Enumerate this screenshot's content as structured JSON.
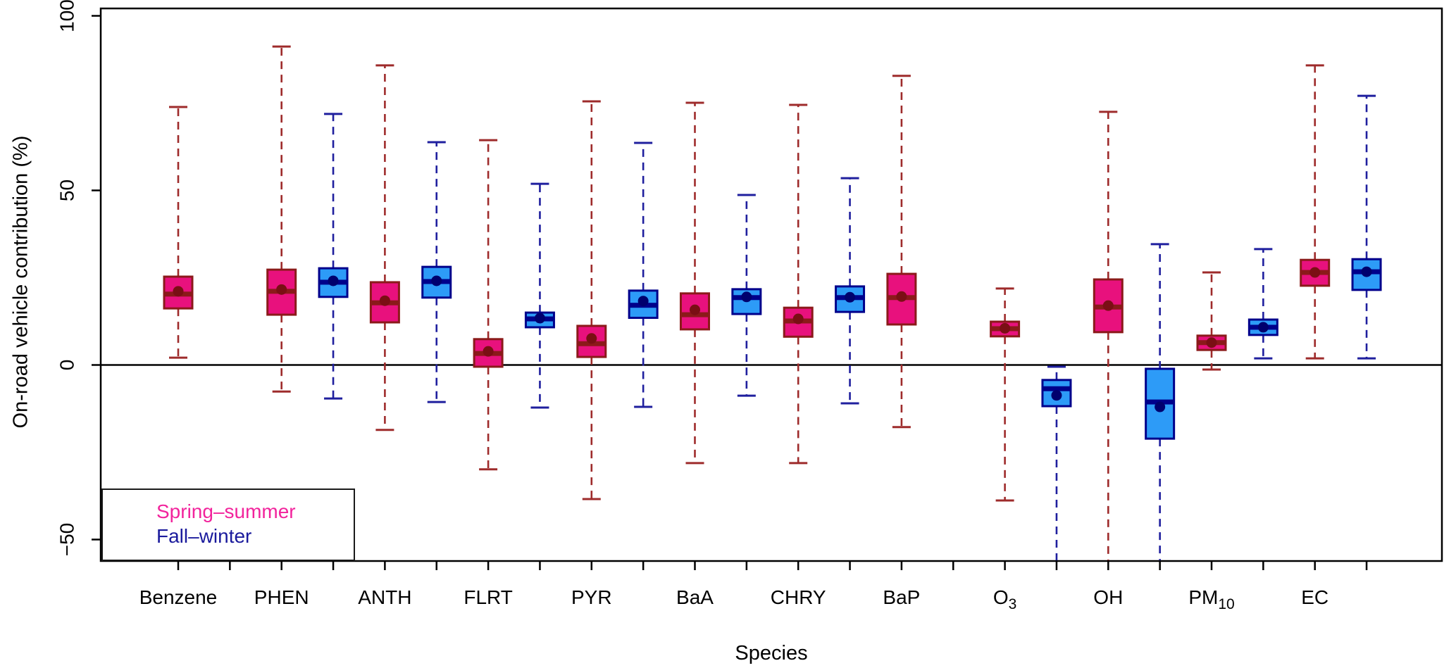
{
  "axes": {
    "x": {
      "label": "Species"
    },
    "y": {
      "label": "On-road vehicle contribution (%)",
      "tick_values": [
        100,
        50,
        0,
        -50
      ],
      "tick_labels": [
        "100",
        "50",
        "0",
        "−50"
      ],
      "range": [
        -56,
        102
      ]
    }
  },
  "legend": {
    "items": [
      {
        "label": "Spring–summer",
        "color": "#F2239C"
      },
      {
        "label": "Fall–winter",
        "color": "#1A1A9C"
      }
    ]
  },
  "colors": {
    "spring": {
      "fill": "#E8117D",
      "border": "#8B1A1A",
      "whisker": "#9E2B2B",
      "median": "#8B1A1A",
      "mean_dot": "#7A0F14"
    },
    "fall": {
      "fill": "#2D9BF7",
      "border": "#00008B",
      "whisker": "#1F1F9E",
      "median": "#00008B",
      "mean_dot": "#00006E"
    },
    "zero_line": "#000000",
    "panel_border": "#000000"
  },
  "chart_data": {
    "type": "boxplot",
    "title": "",
    "xlabel": "Species",
    "ylabel": "On-road vehicle contribution (%)",
    "ylim": [
      -56,
      102
    ],
    "grid": false,
    "legend_position": "bottom-left",
    "series_names": [
      "Spring-summer",
      "Fall-winter"
    ],
    "zero_reference_line": 0,
    "species": [
      {
        "name": "Benzene",
        "label_main": "Benzene",
        "label_sub": "",
        "spring": {
          "low": 2.1,
          "q1": 16.2,
          "median": 20.3,
          "mean": 21.1,
          "q3": 25.3,
          "high": 73.9,
          "low_clipped": false
        },
        "fall": null
      },
      {
        "name": "PHEN",
        "label_main": "PHEN",
        "label_sub": "",
        "spring": {
          "low": -7.6,
          "q1": 14.4,
          "median": 21.1,
          "mean": 21.6,
          "q3": 27.3,
          "high": 91.2,
          "low_clipped": false
        },
        "fall": {
          "low": -9.6,
          "q1": 19.5,
          "median": 23.7,
          "mean": 24.1,
          "q3": 27.7,
          "high": 71.9,
          "low_clipped": false
        }
      },
      {
        "name": "ANTH",
        "label_main": "ANTH",
        "label_sub": "",
        "spring": {
          "low": -18.6,
          "q1": 12.2,
          "median": 17.8,
          "mean": 18.4,
          "q3": 23.7,
          "high": 85.8,
          "low_clipped": false
        },
        "fall": {
          "low": -10.6,
          "q1": 19.3,
          "median": 23.9,
          "mean": 24.1,
          "q3": 28.1,
          "high": 63.8,
          "low_clipped": false
        }
      },
      {
        "name": "FLRT",
        "label_main": "FLRT",
        "label_sub": "",
        "spring": {
          "low": -29.9,
          "q1": -0.5,
          "median": 3.3,
          "mean": 3.9,
          "q3": 7.4,
          "high": 64.4,
          "low_clipped": false
        },
        "fall": {
          "low": -12.2,
          "q1": 10.8,
          "median": 13.2,
          "mean": 13.4,
          "q3": 15.0,
          "high": 51.9,
          "low_clipped": false
        }
      },
      {
        "name": "PYR",
        "label_main": "PYR",
        "label_sub": "",
        "spring": {
          "low": -38.4,
          "q1": 2.3,
          "median": 6.1,
          "mean": 7.6,
          "q3": 11.2,
          "high": 75.5,
          "low_clipped": false
        },
        "fall": {
          "low": -12.0,
          "q1": 13.5,
          "median": 17.1,
          "mean": 18.3,
          "q3": 21.3,
          "high": 63.6,
          "low_clipped": false
        }
      },
      {
        "name": "BaA",
        "label_main": "BaA",
        "label_sub": "",
        "spring": {
          "low": -28.1,
          "q1": 10.2,
          "median": 14.4,
          "mean": 15.8,
          "q3": 20.5,
          "high": 75.1,
          "low_clipped": false
        },
        "fall": {
          "low": -8.8,
          "q1": 14.6,
          "median": 19.3,
          "mean": 19.5,
          "q3": 21.7,
          "high": 48.7,
          "low_clipped": false
        }
      },
      {
        "name": "CHRY",
        "label_main": "CHRY",
        "label_sub": "",
        "spring": {
          "low": -28.1,
          "q1": 8.1,
          "median": 12.6,
          "mean": 13.2,
          "q3": 16.4,
          "high": 74.5,
          "low_clipped": false
        },
        "fall": {
          "low": -11.0,
          "q1": 15.2,
          "median": 19.3,
          "mean": 19.4,
          "q3": 22.5,
          "high": 53.5,
          "low_clipped": false
        }
      },
      {
        "name": "BaP",
        "label_main": "BaP",
        "label_sub": "",
        "spring": {
          "low": -17.8,
          "q1": 11.6,
          "median": 19.3,
          "mean": 19.6,
          "q3": 26.1,
          "high": 82.8,
          "low_clipped": false
        },
        "fall": null
      },
      {
        "name": "O3",
        "label_main": "O",
        "label_sub": "3",
        "spring": {
          "low": -38.8,
          "q1": 8.2,
          "median": 10.4,
          "mean": 10.5,
          "q3": 12.4,
          "high": 21.9,
          "low_clipped": false
        },
        "fall": {
          "low": null,
          "q1": -11.8,
          "median": -6.8,
          "mean": -8.7,
          "q3": -4.3,
          "high": -0.5,
          "low_clipped": true
        }
      },
      {
        "name": "OH",
        "label_main": "OH",
        "label_sub": "",
        "spring": {
          "low": null,
          "q1": 9.4,
          "median": 16.6,
          "mean": 17.0,
          "q3": 24.5,
          "high": 72.5,
          "low_clipped": true
        },
        "fall": {
          "low": null,
          "q1": -21.1,
          "median": -10.6,
          "mean": -12.0,
          "q3": -1.1,
          "high": 34.6,
          "low_clipped": true
        }
      },
      {
        "name": "PM10",
        "label_main": "PM",
        "label_sub": "10",
        "spring": {
          "low": -1.3,
          "q1": 4.3,
          "median": 6.4,
          "mean": 6.4,
          "q3": 8.4,
          "high": 26.5,
          "low_clipped": false
        },
        "fall": {
          "low": 1.9,
          "q1": 8.6,
          "median": 10.8,
          "mean": 10.8,
          "q3": 13.0,
          "high": 33.2,
          "low_clipped": false
        }
      },
      {
        "name": "EC",
        "label_main": "EC",
        "label_sub": "",
        "spring": {
          "low": 1.9,
          "q1": 22.7,
          "median": 26.5,
          "mean": 26.5,
          "q3": 30.1,
          "high": 85.8,
          "low_clipped": false
        },
        "fall": {
          "low": 1.9,
          "q1": 21.5,
          "median": 26.7,
          "mean": 26.7,
          "q3": 30.3,
          "high": 77.1,
          "low_clipped": false
        }
      }
    ]
  }
}
